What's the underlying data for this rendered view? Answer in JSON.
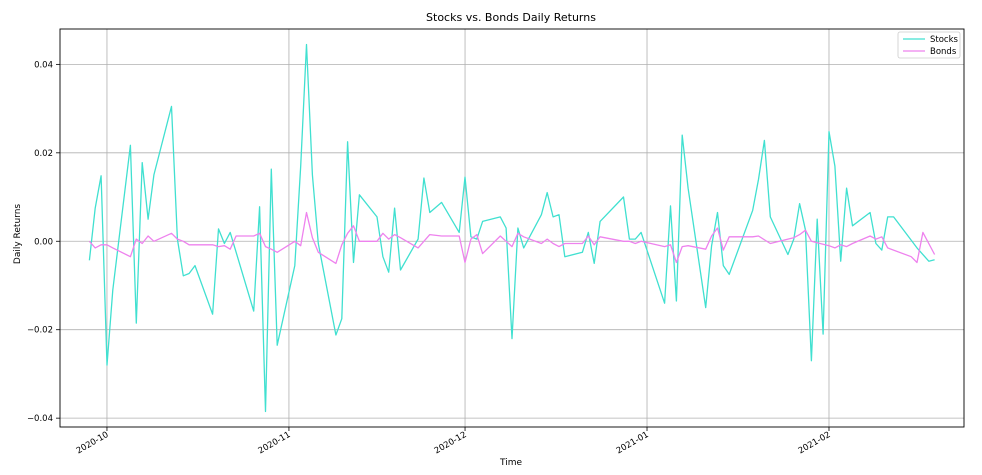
{
  "chart_data": {
    "type": "line",
    "title": "Stocks vs. Bonds Daily Returns",
    "xlabel": "Time",
    "ylabel": "Daily Returns",
    "ylim": [
      -0.042,
      0.048
    ],
    "xlim": [
      "2020-09-23",
      "2021-02-24"
    ],
    "grid": true,
    "legend": "top-right",
    "x_ticks": [
      {
        "date": "2020-10-01",
        "label": "2020-10"
      },
      {
        "date": "2020-11-01",
        "label": "2020-11"
      },
      {
        "date": "2020-12-01",
        "label": "2020-12"
      },
      {
        "date": "2021-01-01",
        "label": "2021-01"
      },
      {
        "date": "2021-02-01",
        "label": "2021-02"
      }
    ],
    "y_ticks": [
      {
        "value": -0.04,
        "label": "−0.04"
      },
      {
        "value": -0.02,
        "label": "−0.02"
      },
      {
        "value": 0.0,
        "label": "0.00"
      },
      {
        "value": 0.02,
        "label": "0.02"
      },
      {
        "value": 0.04,
        "label": "0.04"
      }
    ],
    "series": [
      {
        "name": "Stocks",
        "color": "#40e0d0",
        "points": [
          [
            "2020-09-28",
            -0.0043
          ],
          [
            "2020-09-29",
            0.0075
          ],
          [
            "2020-09-30",
            0.0148
          ],
          [
            "2020-10-01",
            -0.028
          ],
          [
            "2020-10-02",
            -0.011
          ],
          [
            "2020-10-05",
            0.0217
          ],
          [
            "2020-10-06",
            -0.0185
          ],
          [
            "2020-10-07",
            0.0178
          ],
          [
            "2020-10-08",
            0.005
          ],
          [
            "2020-10-09",
            0.015
          ],
          [
            "2020-10-12",
            0.0305
          ],
          [
            "2020-10-13",
            0.0005
          ],
          [
            "2020-10-14",
            -0.0078
          ],
          [
            "2020-10-15",
            -0.0073
          ],
          [
            "2020-10-16",
            -0.0055
          ],
          [
            "2020-10-19",
            -0.0165
          ],
          [
            "2020-10-20",
            0.0028
          ],
          [
            "2020-10-21",
            -0.0005
          ],
          [
            "2020-10-22",
            0.002
          ],
          [
            "2020-10-26",
            -0.0158
          ],
          [
            "2020-10-27",
            0.0078
          ],
          [
            "2020-10-28",
            -0.0385
          ],
          [
            "2020-10-29",
            0.0163
          ],
          [
            "2020-10-30",
            -0.0235
          ],
          [
            "2020-11-02",
            -0.0055
          ],
          [
            "2020-11-03",
            0.017
          ],
          [
            "2020-11-04",
            0.0445
          ],
          [
            "2020-11-05",
            0.015
          ],
          [
            "2020-11-06",
            -0.0005
          ],
          [
            "2020-11-09",
            -0.0212
          ],
          [
            "2020-11-10",
            -0.0175
          ],
          [
            "2020-11-11",
            0.0225
          ],
          [
            "2020-11-12",
            -0.0048
          ],
          [
            "2020-11-13",
            0.0105
          ],
          [
            "2020-11-16",
            0.0055
          ],
          [
            "2020-11-17",
            -0.0035
          ],
          [
            "2020-11-18",
            -0.007
          ],
          [
            "2020-11-19",
            0.0075
          ],
          [
            "2020-11-20",
            -0.0065
          ],
          [
            "2020-11-23",
            0.0005
          ],
          [
            "2020-11-24",
            0.0143
          ],
          [
            "2020-11-25",
            0.0065
          ],
          [
            "2020-11-27",
            0.0088
          ],
          [
            "2020-11-30",
            0.002
          ],
          [
            "2020-12-01",
            0.0145
          ],
          [
            "2020-12-02",
            0.001
          ],
          [
            "2020-12-03",
            0.0005
          ],
          [
            "2020-12-04",
            0.0045
          ],
          [
            "2020-12-07",
            0.0055
          ],
          [
            "2020-12-08",
            0.003
          ],
          [
            "2020-12-09",
            -0.022
          ],
          [
            "2020-12-10",
            0.003
          ],
          [
            "2020-12-11",
            -0.0015
          ],
          [
            "2020-12-14",
            0.006
          ],
          [
            "2020-12-15",
            0.011
          ],
          [
            "2020-12-16",
            0.0055
          ],
          [
            "2020-12-17",
            0.006
          ],
          [
            "2020-12-18",
            -0.0035
          ],
          [
            "2020-12-21",
            -0.0025
          ],
          [
            "2020-12-22",
            0.002
          ],
          [
            "2020-12-23",
            -0.005
          ],
          [
            "2020-12-24",
            0.0045
          ],
          [
            "2020-12-28",
            0.01
          ],
          [
            "2020-12-29",
            0.0005
          ],
          [
            "2020-12-30",
            0.0005
          ],
          [
            "2020-12-31",
            0.002
          ],
          [
            "2021-01-04",
            -0.014
          ],
          [
            "2021-01-05",
            0.008
          ],
          [
            "2021-01-06",
            -0.0135
          ],
          [
            "2021-01-07",
            0.024
          ],
          [
            "2021-01-08",
            0.012
          ],
          [
            "2021-01-11",
            -0.015
          ],
          [
            "2021-01-12",
            -0.001
          ],
          [
            "2021-01-13",
            0.0065
          ],
          [
            "2021-01-14",
            -0.0055
          ],
          [
            "2021-01-15",
            -0.0075
          ],
          [
            "2021-01-19",
            0.007
          ],
          [
            "2021-01-20",
            0.014
          ],
          [
            "2021-01-21",
            0.0228
          ],
          [
            "2021-01-22",
            0.0055
          ],
          [
            "2021-01-25",
            -0.003
          ],
          [
            "2021-01-26",
            0.0005
          ],
          [
            "2021-01-27",
            0.0085
          ],
          [
            "2021-01-28",
            0.0025
          ],
          [
            "2021-01-29",
            -0.027
          ],
          [
            "2021-01-30",
            0.005
          ],
          [
            "2021-01-31",
            -0.021
          ],
          [
            "2021-02-01",
            0.0248
          ],
          [
            "2021-02-02",
            0.017
          ],
          [
            "2021-02-03",
            -0.0045
          ],
          [
            "2021-02-04",
            0.012
          ],
          [
            "2021-02-05",
            0.0035
          ],
          [
            "2021-02-08",
            0.0065
          ],
          [
            "2021-02-09",
            -0.0005
          ],
          [
            "2021-02-10",
            -0.002
          ],
          [
            "2021-02-11",
            0.0055
          ],
          [
            "2021-02-12",
            0.0055
          ],
          [
            "2021-02-16",
            -0.0015
          ],
          [
            "2021-02-18",
            -0.0045
          ],
          [
            "2021-02-19",
            -0.0042
          ]
        ]
      },
      {
        "name": "Bonds",
        "color": "#ee82ee",
        "points": [
          [
            "2020-09-28",
            0.0
          ],
          [
            "2020-09-29",
            -0.0015
          ],
          [
            "2020-09-30",
            -0.0008
          ],
          [
            "2020-10-01",
            -0.0008
          ],
          [
            "2020-10-02",
            -0.0015
          ],
          [
            "2020-10-05",
            -0.0035
          ],
          [
            "2020-10-06",
            0.0005
          ],
          [
            "2020-10-07",
            -0.0005
          ],
          [
            "2020-10-08",
            0.0012
          ],
          [
            "2020-10-09",
            0.0
          ],
          [
            "2020-10-12",
            0.0018
          ],
          [
            "2020-10-13",
            0.0005
          ],
          [
            "2020-10-14",
            0.0
          ],
          [
            "2020-10-15",
            -0.0008
          ],
          [
            "2020-10-19",
            -0.0008
          ],
          [
            "2020-10-20",
            -0.0012
          ],
          [
            "2020-10-21",
            -0.001
          ],
          [
            "2020-10-22",
            -0.0018
          ],
          [
            "2020-10-23",
            0.0012
          ],
          [
            "2020-10-26",
            0.0012
          ],
          [
            "2020-10-27",
            0.0018
          ],
          [
            "2020-10-28",
            -0.0012
          ],
          [
            "2020-10-29",
            -0.0018
          ],
          [
            "2020-10-30",
            -0.0025
          ],
          [
            "2020-11-02",
            0.0
          ],
          [
            "2020-11-03",
            -0.001
          ],
          [
            "2020-11-04",
            0.0065
          ],
          [
            "2020-11-05",
            0.0008
          ],
          [
            "2020-11-06",
            -0.0025
          ],
          [
            "2020-11-09",
            -0.005
          ],
          [
            "2020-11-10",
            -0.0008
          ],
          [
            "2020-11-11",
            0.0018
          ],
          [
            "2020-11-12",
            0.0035
          ],
          [
            "2020-11-13",
            0.0
          ],
          [
            "2020-11-16",
            0.0
          ],
          [
            "2020-11-17",
            0.0018
          ],
          [
            "2020-11-18",
            0.0005
          ],
          [
            "2020-11-19",
            0.0015
          ],
          [
            "2020-11-20",
            0.0008
          ],
          [
            "2020-11-23",
            -0.0015
          ],
          [
            "2020-11-24",
            0.0
          ],
          [
            "2020-11-25",
            0.0015
          ],
          [
            "2020-11-27",
            0.0012
          ],
          [
            "2020-11-30",
            0.0012
          ],
          [
            "2020-12-01",
            -0.0048
          ],
          [
            "2020-12-02",
            0.0005
          ],
          [
            "2020-12-03",
            0.0015
          ],
          [
            "2020-12-04",
            -0.0028
          ],
          [
            "2020-12-07",
            0.0012
          ],
          [
            "2020-12-08",
            0.0
          ],
          [
            "2020-12-09",
            -0.0012
          ],
          [
            "2020-12-10",
            0.0018
          ],
          [
            "2020-12-11",
            0.001
          ],
          [
            "2020-12-14",
            -0.0005
          ],
          [
            "2020-12-15",
            0.0005
          ],
          [
            "2020-12-16",
            -0.0005
          ],
          [
            "2020-12-17",
            -0.0012
          ],
          [
            "2020-12-18",
            -0.0005
          ],
          [
            "2020-12-21",
            -0.0005
          ],
          [
            "2020-12-22",
            0.0012
          ],
          [
            "2020-12-23",
            -0.0008
          ],
          [
            "2020-12-24",
            0.001
          ],
          [
            "2020-12-28",
            0.0
          ],
          [
            "2020-12-29",
            0.0
          ],
          [
            "2020-12-30",
            -0.0005
          ],
          [
            "2020-12-31",
            0.0
          ],
          [
            "2021-01-04",
            -0.0012
          ],
          [
            "2021-01-05",
            -0.0008
          ],
          [
            "2021-01-06",
            -0.0048
          ],
          [
            "2021-01-07",
            -0.0012
          ],
          [
            "2021-01-08",
            -0.001
          ],
          [
            "2021-01-11",
            -0.0018
          ],
          [
            "2021-01-12",
            0.0012
          ],
          [
            "2021-01-13",
            0.003
          ],
          [
            "2021-01-14",
            -0.002
          ],
          [
            "2021-01-15",
            0.001
          ],
          [
            "2021-01-19",
            0.001
          ],
          [
            "2021-01-20",
            0.0012
          ],
          [
            "2021-01-22",
            -0.0005
          ],
          [
            "2021-01-25",
            0.0005
          ],
          [
            "2021-01-26",
            0.0008
          ],
          [
            "2021-01-27",
            0.0015
          ],
          [
            "2021-01-28",
            0.0025
          ],
          [
            "2021-01-29",
            0.0
          ],
          [
            "2021-02-01",
            -0.001
          ],
          [
            "2021-02-02",
            -0.0015
          ],
          [
            "2021-02-03",
            -0.0008
          ],
          [
            "2021-02-04",
            -0.0012
          ],
          [
            "2021-02-05",
            -0.0005
          ],
          [
            "2021-02-08",
            0.0012
          ],
          [
            "2021-02-09",
            0.0005
          ],
          [
            "2021-02-10",
            0.001
          ],
          [
            "2021-02-11",
            -0.0015
          ],
          [
            "2021-02-15",
            -0.0035
          ],
          [
            "2021-02-16",
            -0.0048
          ],
          [
            "2021-02-17",
            0.002
          ],
          [
            "2021-02-19",
            -0.003
          ]
        ]
      }
    ]
  }
}
